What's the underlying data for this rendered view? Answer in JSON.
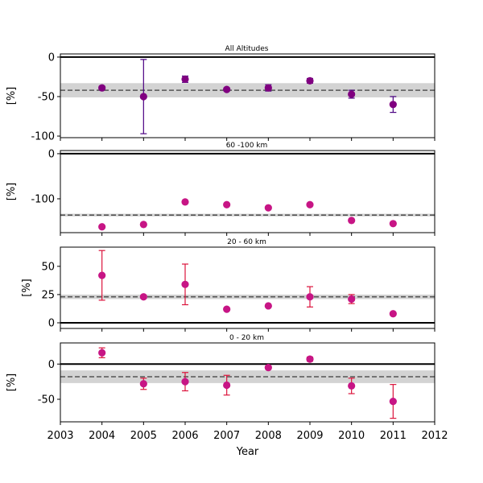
{
  "chart_data": {
    "type": "scatter",
    "xlabel": "Year",
    "xlim": [
      2003,
      2012
    ],
    "xticks": [
      2003,
      2004,
      2005,
      2006,
      2007,
      2008,
      2009,
      2010,
      2011,
      2012
    ],
    "panels": [
      {
        "title": "All Altitudes",
        "ylabel": "[%]",
        "ylim": [
          -102,
          4
        ],
        "yticks": [
          0,
          -50,
          -100
        ],
        "color": "#4b0082",
        "marker_color": "#800080",
        "mean": -42,
        "band": [
          -51,
          -33
        ],
        "points": [
          {
            "x": 2004,
            "y": -39,
            "err": 2
          },
          {
            "x": 2005,
            "y": -50,
            "err": 47
          },
          {
            "x": 2006,
            "y": -28,
            "err": 4
          },
          {
            "x": 2007,
            "y": -41,
            "err": 2
          },
          {
            "x": 2008,
            "y": -39,
            "err": 4
          },
          {
            "x": 2009,
            "y": -30,
            "err": 3
          },
          {
            "x": 2010,
            "y": -47,
            "err": 5
          },
          {
            "x": 2011,
            "y": -60,
            "err": 10
          }
        ]
      },
      {
        "title": "60 -100 km",
        "ylabel": "[%]",
        "ylim": [
          -175,
          7
        ],
        "yticks": [
          0,
          -100
        ],
        "color": "#dc143c",
        "marker_color": "#c71585",
        "mean": -136,
        "band": [
          -139,
          -133
        ],
        "points": [
          {
            "x": 2004,
            "y": -162,
            "err": 2
          },
          {
            "x": 2005,
            "y": -157,
            "err": 2
          },
          {
            "x": 2006,
            "y": -107,
            "err": 2
          },
          {
            "x": 2007,
            "y": -113,
            "err": 2
          },
          {
            "x": 2008,
            "y": -120,
            "err": 2
          },
          {
            "x": 2009,
            "y": -113,
            "err": 2
          },
          {
            "x": 2010,
            "y": -148,
            "err": 2
          },
          {
            "x": 2011,
            "y": -155,
            "err": 2
          }
        ]
      },
      {
        "title": "20 - 60 km",
        "ylabel": "[%]",
        "ylim": [
          -5,
          67
        ],
        "yticks": [
          50,
          25,
          0
        ],
        "color": "#dc143c",
        "marker_color": "#c71585",
        "mean": 23,
        "band": [
          21,
          25
        ],
        "points": [
          {
            "x": 2004,
            "y": 42,
            "err": 22
          },
          {
            "x": 2005,
            "y": 23,
            "err": 1
          },
          {
            "x": 2006,
            "y": 34,
            "err": 18
          },
          {
            "x": 2007,
            "y": 12,
            "err": 1
          },
          {
            "x": 2008,
            "y": 15,
            "err": 1
          },
          {
            "x": 2009,
            "y": 23,
            "err": 9
          },
          {
            "x": 2010,
            "y": 21,
            "err": 4
          },
          {
            "x": 2011,
            "y": 8,
            "err": 1
          }
        ]
      },
      {
        "title": "0 - 20 km",
        "ylabel": "[%]",
        "ylim": [
          -82,
          30
        ],
        "yticks": [
          0,
          -50
        ],
        "color": "#dc143c",
        "marker_color": "#c71585",
        "mean": -18,
        "band": [
          -27,
          -9
        ],
        "points": [
          {
            "x": 2004,
            "y": 16,
            "err": 7
          },
          {
            "x": 2005,
            "y": -28,
            "err": 8
          },
          {
            "x": 2006,
            "y": -25,
            "err": 13
          },
          {
            "x": 2007,
            "y": -30,
            "err": 14
          },
          {
            "x": 2008,
            "y": -5,
            "err": 2
          },
          {
            "x": 2009,
            "y": 7,
            "err": 3
          },
          {
            "x": 2010,
            "y": -31,
            "err": 11
          },
          {
            "x": 2011,
            "y": -53,
            "err": 24
          }
        ]
      }
    ]
  }
}
